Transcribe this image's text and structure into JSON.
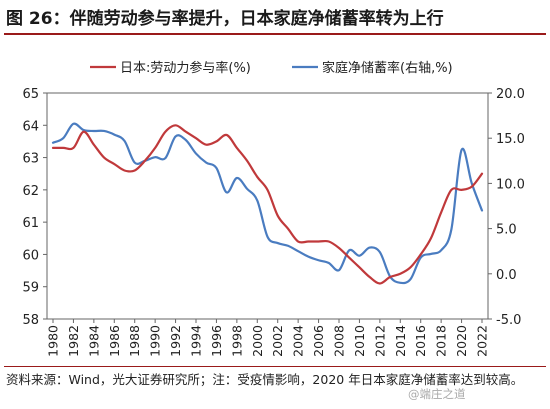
{
  "title": "图 26：伴随劳动参与率提升，日本家庭净储蓄率转为上行",
  "source": "资料来源：Wind，光大证券研究所；注：受疫情影响，2020 年日本家庭净储蓄率达到较高。",
  "watermark": "@端庄之道",
  "colors": {
    "series1": "#c0393b",
    "series2": "#4a7cc0",
    "accent": "#9a1a1a"
  },
  "chart_data": {
    "type": "line",
    "title": "",
    "xlabel": "",
    "ylabel": "",
    "x": [
      1980,
      1981,
      1982,
      1983,
      1984,
      1985,
      1986,
      1987,
      1988,
      1989,
      1990,
      1991,
      1992,
      1993,
      1994,
      1995,
      1996,
      1997,
      1998,
      1999,
      2000,
      2001,
      2002,
      2003,
      2004,
      2005,
      2006,
      2007,
      2008,
      2009,
      2010,
      2011,
      2012,
      2013,
      2014,
      2015,
      2016,
      2017,
      2018,
      2019,
      2020,
      2021,
      2022
    ],
    "xticks": [
      "1980",
      "1982",
      "1984",
      "1986",
      "1988",
      "1990",
      "1992",
      "1994",
      "1996",
      "1998",
      "2000",
      "2002",
      "2004",
      "2006",
      "2008",
      "2010",
      "2012",
      "2014",
      "2016",
      "2018",
      "2020",
      "2022"
    ],
    "y_left": {
      "lim": [
        58,
        65
      ],
      "ticks": [
        "58",
        "59",
        "60",
        "61",
        "62",
        "63",
        "64",
        "65"
      ]
    },
    "y_right": {
      "lim": [
        -5,
        20
      ],
      "ticks": [
        "-5.0",
        "0.0",
        "5.0",
        "10.0",
        "15.0",
        "20.0"
      ]
    },
    "legend_position": "top",
    "series": [
      {
        "name": "日本:劳动力参与率(%)",
        "axis": "left",
        "values": [
          63.3,
          63.3,
          63.3,
          63.8,
          63.4,
          63.0,
          62.8,
          62.6,
          62.6,
          62.9,
          63.3,
          63.8,
          64.0,
          63.8,
          63.6,
          63.4,
          63.5,
          63.7,
          63.3,
          62.9,
          62.4,
          62.0,
          61.2,
          60.8,
          60.4,
          60.4,
          60.4,
          60.4,
          60.2,
          59.9,
          59.6,
          59.3,
          59.1,
          59.3,
          59.4,
          59.6,
          60.0,
          60.5,
          61.3,
          62.0,
          62.0,
          62.1,
          62.5
        ]
      },
      {
        "name": "家庭净储蓄率(右轴,%)",
        "axis": "right",
        "values": [
          14.5,
          15.0,
          16.6,
          15.9,
          15.8,
          15.8,
          15.4,
          14.7,
          12.3,
          12.5,
          12.9,
          12.8,
          15.2,
          14.8,
          13.3,
          12.3,
          11.7,
          9.0,
          10.6,
          9.4,
          8.1,
          4.1,
          3.4,
          3.1,
          2.5,
          1.9,
          1.5,
          1.2,
          0.4,
          2.6,
          2.0,
          2.9,
          2.4,
          -0.3,
          -1.0,
          -0.6,
          1.8,
          2.2,
          2.6,
          4.9,
          13.7,
          10.0,
          7.0
        ]
      }
    ]
  }
}
